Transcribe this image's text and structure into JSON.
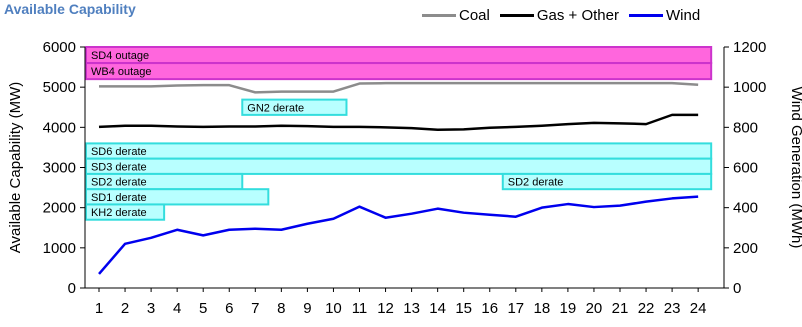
{
  "chart_data": {
    "type": "line",
    "title": "Available Capability",
    "x": [
      1,
      2,
      3,
      4,
      5,
      6,
      7,
      8,
      9,
      10,
      11,
      12,
      13,
      14,
      15,
      16,
      17,
      18,
      19,
      20,
      21,
      22,
      23,
      24
    ],
    "ylabel": "Available Capability (MW)",
    "y2label": "Wind Generation (MWh)",
    "ylim": [
      0,
      6000
    ],
    "y2lim": [
      0,
      1200
    ],
    "yticks": [
      0,
      1000,
      2000,
      3000,
      4000,
      5000,
      6000
    ],
    "y2ticks": [
      0,
      200,
      400,
      600,
      800,
      1000,
      1200
    ],
    "series": [
      {
        "name": "Coal",
        "color": "#8c8c8c",
        "axis": "left",
        "values": [
          5020,
          5020,
          5020,
          5040,
          5050,
          5050,
          4870,
          4890,
          4890,
          4890,
          5090,
          5100,
          5100,
          5100,
          5100,
          5100,
          5100,
          5100,
          5100,
          5100,
          5100,
          5100,
          5100,
          5060
        ]
      },
      {
        "name": "Gas + Other",
        "color": "#000000",
        "axis": "left",
        "values": [
          4010,
          4040,
          4040,
          4020,
          4010,
          4020,
          4020,
          4040,
          4030,
          4010,
          4010,
          4000,
          3980,
          3940,
          3950,
          3990,
          4010,
          4040,
          4080,
          4110,
          4100,
          4080,
          4310,
          4310
        ]
      },
      {
        "name": "Wind",
        "color": "#0000ee",
        "axis": "right",
        "values": [
          70,
          220,
          250,
          290,
          262,
          290,
          295,
          290,
          320,
          345,
          405,
          350,
          370,
          395,
          375,
          365,
          355,
          400,
          418,
          403,
          410,
          430,
          446,
          455
        ]
      }
    ],
    "legend_position": "top-right",
    "grid": false,
    "annotations": [
      {
        "label": "SD4 outage",
        "fill": "#ff66dd",
        "border": "#cc33cc",
        "from": 0.5,
        "to": 24.5,
        "y_top": 6000,
        "y_bottom": 5600
      },
      {
        "label": "WB4 outage",
        "fill": "#ff66dd",
        "border": "#cc33cc",
        "from": 0.5,
        "to": 24.5,
        "y_top": 5600,
        "y_bottom": 5200
      },
      {
        "label": "GN2 derate",
        "fill": "#b8ffff",
        "border": "#33dddd",
        "from": 6.5,
        "to": 10.5,
        "y_top": 4690,
        "y_bottom": 4310
      },
      {
        "label": "SD6 derate",
        "fill": "#b8ffff",
        "border": "#33dddd",
        "from": 0.5,
        "to": 24.5,
        "y_top": 3600,
        "y_bottom": 3220
      },
      {
        "label": "SD3 derate",
        "fill": "#b8ffff",
        "border": "#33dddd",
        "from": 0.5,
        "to": 24.5,
        "y_top": 3220,
        "y_bottom": 2840
      },
      {
        "label": "SD2 derate",
        "fill": "#b8ffff",
        "border": "#33dddd",
        "from": 0.5,
        "to": 6.5,
        "y_top": 2840,
        "y_bottom": 2460
      },
      {
        "label": "SD2 derate",
        "fill": "#b8ffff",
        "border": "#33dddd",
        "from": 16.5,
        "to": 24.5,
        "y_top": 2840,
        "y_bottom": 2460
      },
      {
        "label": "SD1 derate",
        "fill": "#b8ffff",
        "border": "#33dddd",
        "from": 0.5,
        "to": 7.5,
        "y_top": 2460,
        "y_bottom": 2080
      },
      {
        "label": "KH2 derate",
        "fill": "#b8ffff",
        "border": "#33dddd",
        "from": 0.5,
        "to": 3.5,
        "y_top": 2080,
        "y_bottom": 1700
      }
    ]
  }
}
